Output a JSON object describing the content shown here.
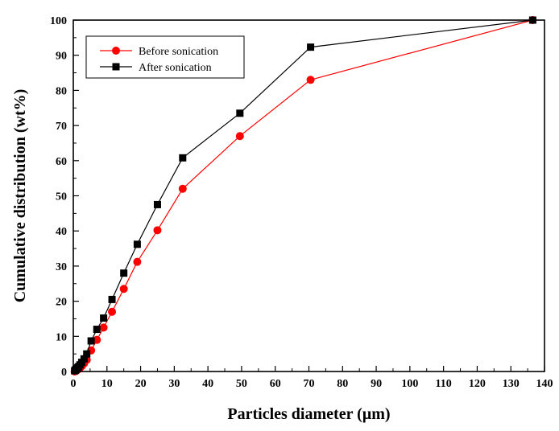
{
  "chart_data": {
    "type": "line",
    "xlabel": "Particles diameter (µm)",
    "ylabel": "Cumulative distribution (wt%)",
    "xlim": [
      0,
      140
    ],
    "ylim": [
      0,
      100
    ],
    "xticks": [
      0,
      10,
      20,
      30,
      40,
      50,
      60,
      70,
      80,
      90,
      100,
      110,
      120,
      130,
      140
    ],
    "yticks": [
      0,
      10,
      20,
      30,
      40,
      50,
      60,
      70,
      80,
      90,
      100
    ],
    "grid": false,
    "legend_position": "top-left",
    "series": [
      {
        "name": "Before sonication",
        "color": "#ff0000",
        "marker": "circle",
        "x": [
          0.4,
          0.6,
          0.8,
          1.0,
          1.3,
          1.6,
          2.0,
          2.5,
          3.2,
          4.0,
          5.3,
          7.0,
          9.0,
          11.5,
          15.0,
          19.0,
          25.0,
          32.5,
          49.5,
          70.5,
          136.5
        ],
        "y": [
          0.0,
          0.1,
          0.2,
          0.3,
          0.5,
          0.7,
          1.0,
          1.5,
          2.3,
          3.3,
          6.0,
          9.0,
          12.5,
          17.0,
          23.5,
          31.2,
          40.2,
          52.0,
          67.0,
          83.0,
          100.0
        ]
      },
      {
        "name": "After sonication",
        "color": "#000000",
        "marker": "square",
        "x": [
          0.4,
          0.6,
          0.8,
          1.0,
          1.3,
          1.6,
          2.0,
          2.5,
          3.2,
          4.0,
          5.3,
          7.0,
          9.0,
          11.5,
          15.0,
          19.0,
          25.0,
          32.5,
          49.5,
          70.5,
          136.5
        ],
        "y": [
          0.2,
          0.4,
          0.6,
          0.8,
          1.1,
          1.4,
          1.9,
          2.6,
          3.6,
          5.0,
          8.7,
          12.0,
          15.2,
          20.5,
          28.0,
          36.2,
          47.5,
          60.8,
          73.5,
          92.3,
          100.0
        ]
      }
    ]
  }
}
